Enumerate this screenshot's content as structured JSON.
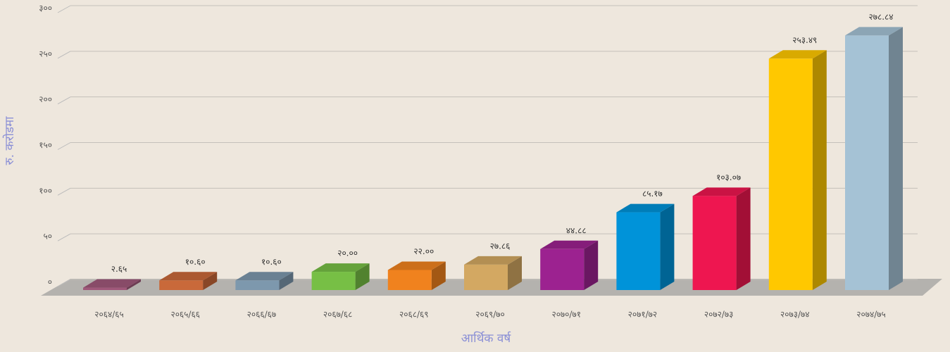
{
  "chart_data": {
    "type": "bar3d",
    "xlabel": "आर्थिक वर्ष",
    "ylabel": "रु. करोडमा",
    "categories": [
      "२०६४/६५",
      "२०६५/६६",
      "२०६६/६७",
      "२०६७/६८",
      "२०६८/६९",
      "२०६९/७०",
      "२०७०/७१",
      "२०७१/७२",
      "२०७२/७३",
      "२०७३/७४",
      "२०७४/७५"
    ],
    "values": [
      2.65,
      10.6,
      10.6,
      20.0,
      22.0,
      27.86,
      44.88,
      85.17,
      103.07,
      253.49,
      278.84
    ],
    "value_labels": [
      "२.६५",
      "१०.६०",
      "१०.६०",
      "२०.००",
      "२२.००",
      "२७.८६",
      "४४.८८",
      "८५.१७",
      "१०३.०७",
      "२५३.४९",
      "२७८.८४"
    ],
    "colors": [
      "#a0587a",
      "#c9693a",
      "#7d98ad",
      "#77bf45",
      "#f0821e",
      "#d3a862",
      "#9c2290",
      "#0093d9",
      "#ee1650",
      "#ffc800",
      "#a5c2d5"
    ],
    "ylim": [
      0,
      300
    ],
    "yticks": [
      {
        "value": 0,
        "label": "०"
      },
      {
        "value": 50,
        "label": "५०"
      },
      {
        "value": 100,
        "label": "१००"
      },
      {
        "value": 150,
        "label": "१५०"
      },
      {
        "value": 200,
        "label": "२००"
      },
      {
        "value": 250,
        "label": "२५०"
      },
      {
        "value": 300,
        "label": "३००"
      }
    ],
    "grid": true
  }
}
